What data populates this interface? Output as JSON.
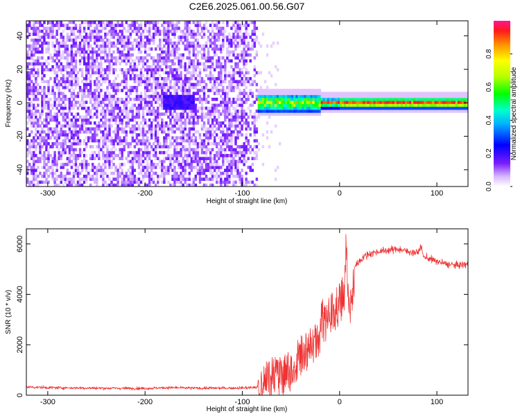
{
  "title": "C2E6.2025.061.00.56.G07",
  "chart_data": [
    {
      "type": "heatmap",
      "xlabel": "Height of straight line (km)",
      "ylabel": "Frequency (Hz)",
      "xlim": [
        -322,
        132
      ],
      "ylim": [
        -50,
        49
      ],
      "xticks": [
        -300,
        -200,
        -100,
        0,
        100
      ],
      "yticks": [
        -40,
        -20,
        0,
        20,
        40
      ],
      "colorbar": {
        "label": "Normalized spectral amplitude",
        "range": [
          0,
          1
        ],
        "ticks": [
          0.0,
          0.2,
          0.4,
          0.6,
          0.8
        ]
      },
      "regions": [
        {
          "x_range": [
            -322,
            -84
          ],
          "frequency_range": [
            -50,
            49
          ],
          "amplitude": "low (broadband noise)"
        },
        {
          "x_range": [
            -100,
            132
          ],
          "frequency_center": 0,
          "frequency_halfwidth": 4,
          "amplitude": "high (0.4-1.0)"
        }
      ]
    },
    {
      "type": "line",
      "xlabel": "Height of straight line (km)",
      "ylabel": "SNR (10 * v/v)",
      "xlim": [
        -322,
        132
      ],
      "ylim": [
        0,
        6600
      ],
      "xticks": [
        -300,
        -200,
        -100,
        0,
        100
      ],
      "yticks": [
        0,
        2000,
        4000,
        6000
      ],
      "line_color": "#ee3333",
      "series": [
        {
          "x": [
            -322,
            -300,
            -250,
            -200,
            -175,
            -150,
            -120,
            -100,
            -90,
            -84,
            -80,
            -75,
            -70,
            -60,
            -50,
            -40,
            -30,
            -22,
            -18,
            -15,
            -10,
            -5,
            0,
            5,
            7,
            8,
            10,
            12,
            15,
            20,
            25,
            30,
            40,
            50,
            60,
            70,
            80,
            84,
            86,
            90,
            100,
            110,
            120,
            132
          ],
          "values": [
            330,
            300,
            280,
            270,
            300,
            280,
            280,
            290,
            300,
            320,
            700,
            1300,
            1100,
            1100,
            1400,
            2000,
            2400,
            2600,
            3500,
            3300,
            3700,
            3800,
            4100,
            4400,
            6600,
            4200,
            3700,
            4400,
            5100,
            5300,
            5500,
            5600,
            5700,
            5750,
            5800,
            5700,
            5650,
            5900,
            5500,
            5450,
            5300,
            5200,
            5150,
            5200
          ]
        }
      ]
    }
  ]
}
